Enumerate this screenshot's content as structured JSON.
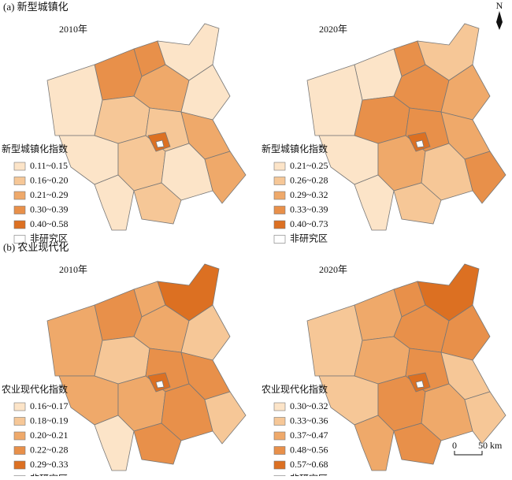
{
  "north": "N",
  "panels": [
    {
      "title": "(a) 新型城镇化",
      "maps": [
        {
          "year": "2010年",
          "legend_title": "新型城镇化指数",
          "non_study": "非研究区",
          "legend": [
            {
              "label": "0.11~0.15",
              "color": "#fce4c8"
            },
            {
              "label": "0.16~0.20",
              "color": "#f6c797"
            },
            {
              "label": "0.21~0.29",
              "color": "#efa96a"
            },
            {
              "label": "0.30~0.39",
              "color": "#e8904a"
            },
            {
              "label": "0.40~0.58",
              "color": "#dc7022"
            }
          ]
        },
        {
          "year": "2020年",
          "legend_title": "新型城镇化指数",
          "non_study": "非研究区",
          "legend": [
            {
              "label": "0.21~0.25",
              "color": "#fce4c8"
            },
            {
              "label": "0.26~0.28",
              "color": "#f6c797"
            },
            {
              "label": "0.29~0.32",
              "color": "#efa96a"
            },
            {
              "label": "0.33~0.39",
              "color": "#e8904a"
            },
            {
              "label": "0.40~0.73",
              "color": "#dc7022"
            }
          ]
        }
      ]
    },
    {
      "title": "(b) 农业现代化",
      "maps": [
        {
          "year": "2010年",
          "legend_title": "农业现代化指数",
          "non_study": "非研究区",
          "legend": [
            {
              "label": "0.16~0.17",
              "color": "#fce4c8"
            },
            {
              "label": "0.18~0.19",
              "color": "#f6c797"
            },
            {
              "label": "0.20~0.21",
              "color": "#efa96a"
            },
            {
              "label": "0.22~0.28",
              "color": "#e8904a"
            },
            {
              "label": "0.29~0.33",
              "color": "#dc7022"
            }
          ]
        },
        {
          "year": "2020年",
          "legend_title": "农业现代化指数",
          "non_study": "非研究区",
          "legend": [
            {
              "label": "0.30~0.32",
              "color": "#fce4c8"
            },
            {
              "label": "0.33~0.36",
              "color": "#f6c797"
            },
            {
              "label": "0.37~0.47",
              "color": "#efa96a"
            },
            {
              "label": "0.48~0.56",
              "color": "#e8904a"
            },
            {
              "label": "0.57~0.68",
              "color": "#dc7022"
            }
          ]
        }
      ]
    }
  ],
  "scale_bar": {
    "labels": [
      "0",
      "50 km"
    ]
  }
}
